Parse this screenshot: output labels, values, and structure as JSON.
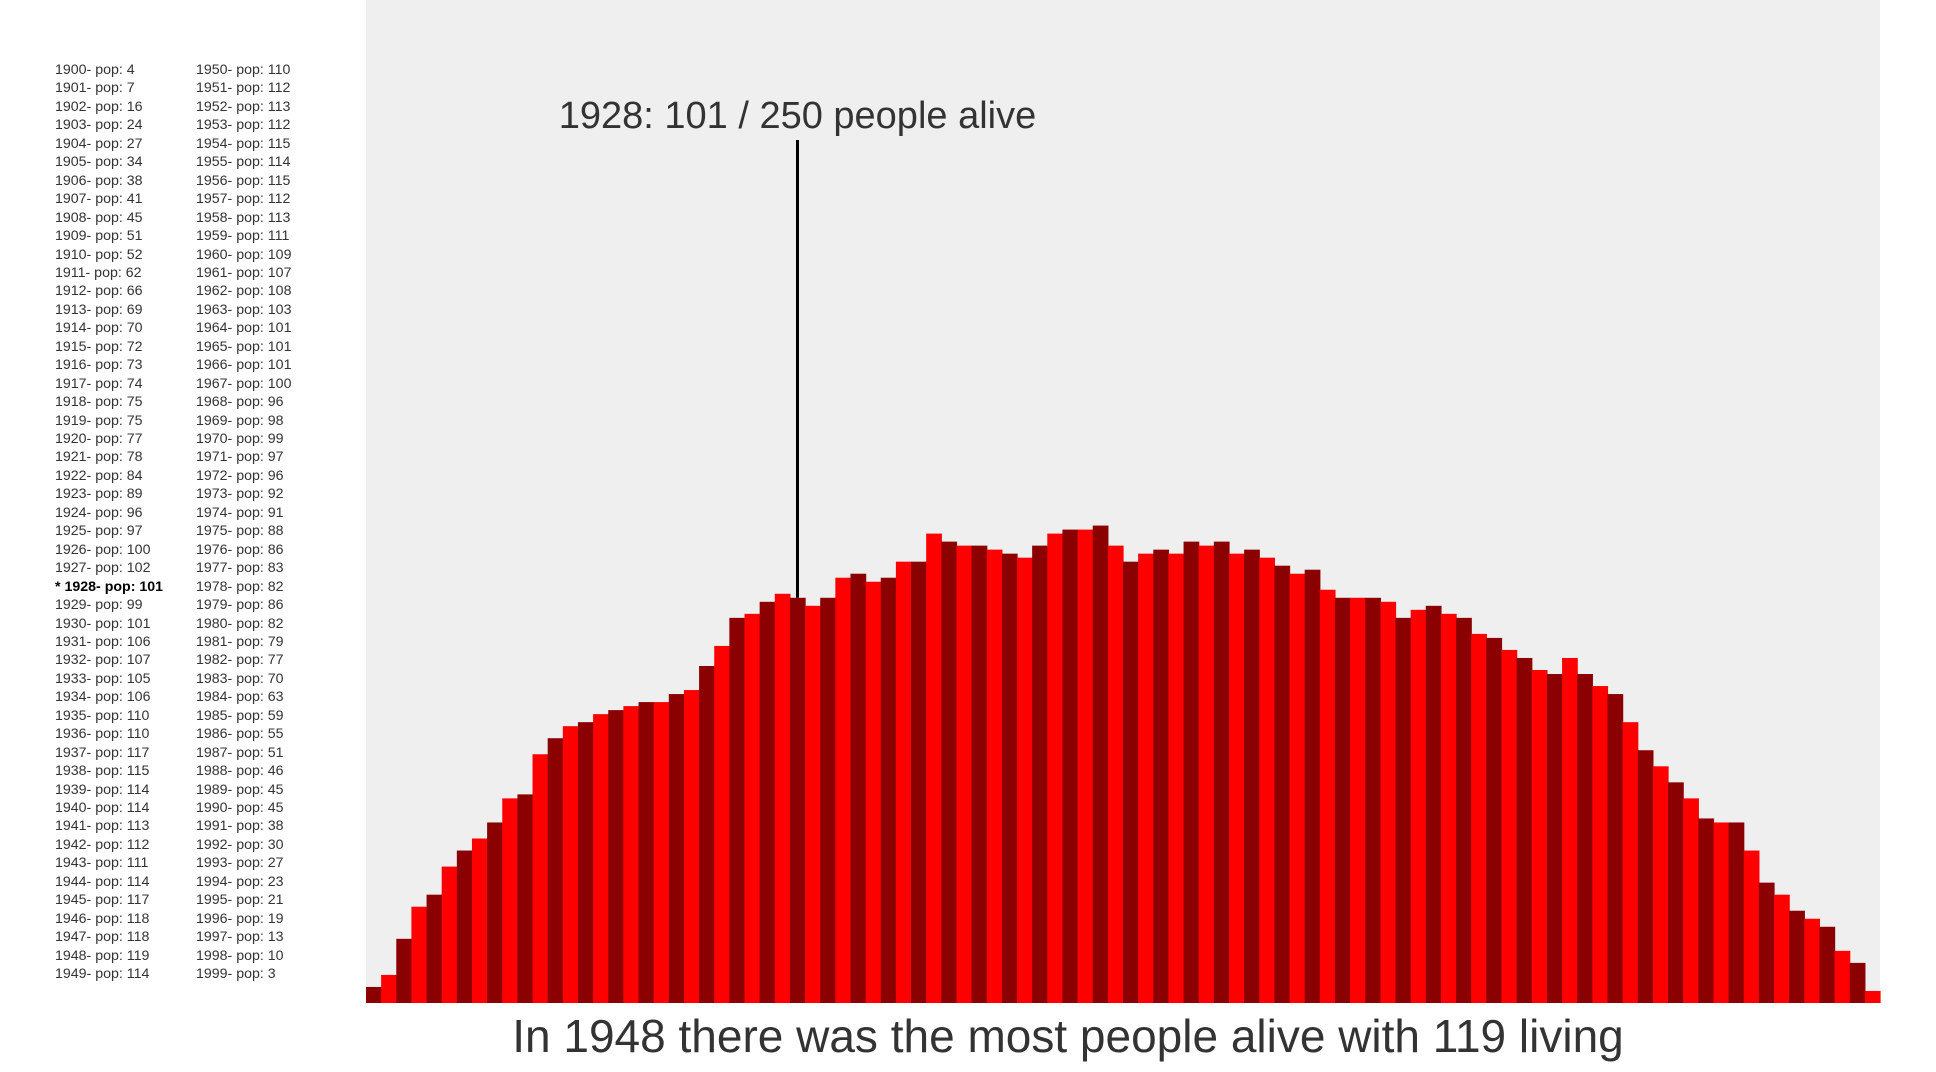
{
  "chart_data": {
    "type": "bar",
    "title": "",
    "xlabel": "",
    "ylabel": "",
    "x": [
      1900,
      1901,
      1902,
      1903,
      1904,
      1905,
      1906,
      1907,
      1908,
      1909,
      1910,
      1911,
      1912,
      1913,
      1914,
      1915,
      1916,
      1917,
      1918,
      1919,
      1920,
      1921,
      1922,
      1923,
      1924,
      1925,
      1926,
      1927,
      1928,
      1929,
      1930,
      1931,
      1932,
      1933,
      1934,
      1935,
      1936,
      1937,
      1938,
      1939,
      1940,
      1941,
      1942,
      1943,
      1944,
      1945,
      1946,
      1947,
      1948,
      1949,
      1950,
      1951,
      1952,
      1953,
      1954,
      1955,
      1956,
      1957,
      1958,
      1959,
      1960,
      1961,
      1962,
      1963,
      1964,
      1965,
      1966,
      1967,
      1968,
      1969,
      1970,
      1971,
      1972,
      1973,
      1974,
      1975,
      1976,
      1977,
      1978,
      1979,
      1980,
      1981,
      1982,
      1983,
      1984,
      1985,
      1986,
      1987,
      1988,
      1989,
      1990,
      1991,
      1992,
      1993,
      1994,
      1995,
      1996,
      1997,
      1998,
      1999
    ],
    "values": [
      4,
      7,
      16,
      24,
      27,
      34,
      38,
      41,
      45,
      51,
      52,
      62,
      66,
      69,
      70,
      72,
      73,
      74,
      75,
      75,
      77,
      78,
      84,
      89,
      96,
      97,
      100,
      102,
      101,
      99,
      101,
      106,
      107,
      105,
      106,
      110,
      110,
      117,
      115,
      114,
      114,
      113,
      112,
      111,
      114,
      117,
      118,
      118,
      119,
      114,
      110,
      112,
      113,
      112,
      115,
      114,
      115,
      112,
      113,
      111,
      109,
      107,
      108,
      103,
      101,
      101,
      101,
      100,
      96,
      98,
      99,
      97,
      96,
      92,
      91,
      88,
      86,
      83,
      82,
      86,
      82,
      79,
      77,
      70,
      63,
      59,
      55,
      51,
      46,
      45,
      45,
      38,
      30,
      27,
      23,
      21,
      19,
      13,
      10,
      3
    ],
    "ylim": [
      0,
      250
    ],
    "highlight_year": 1928,
    "bar_colors": [
      "#8b0000",
      "#ff0000"
    ],
    "background": "#efefef",
    "grid": false,
    "list_label": "- pop: ",
    "selected_marker": "* ",
    "annotation": "1928: 101 / 250 people alive",
    "caption": "In 1948 there was the most people alive with 119 living"
  }
}
